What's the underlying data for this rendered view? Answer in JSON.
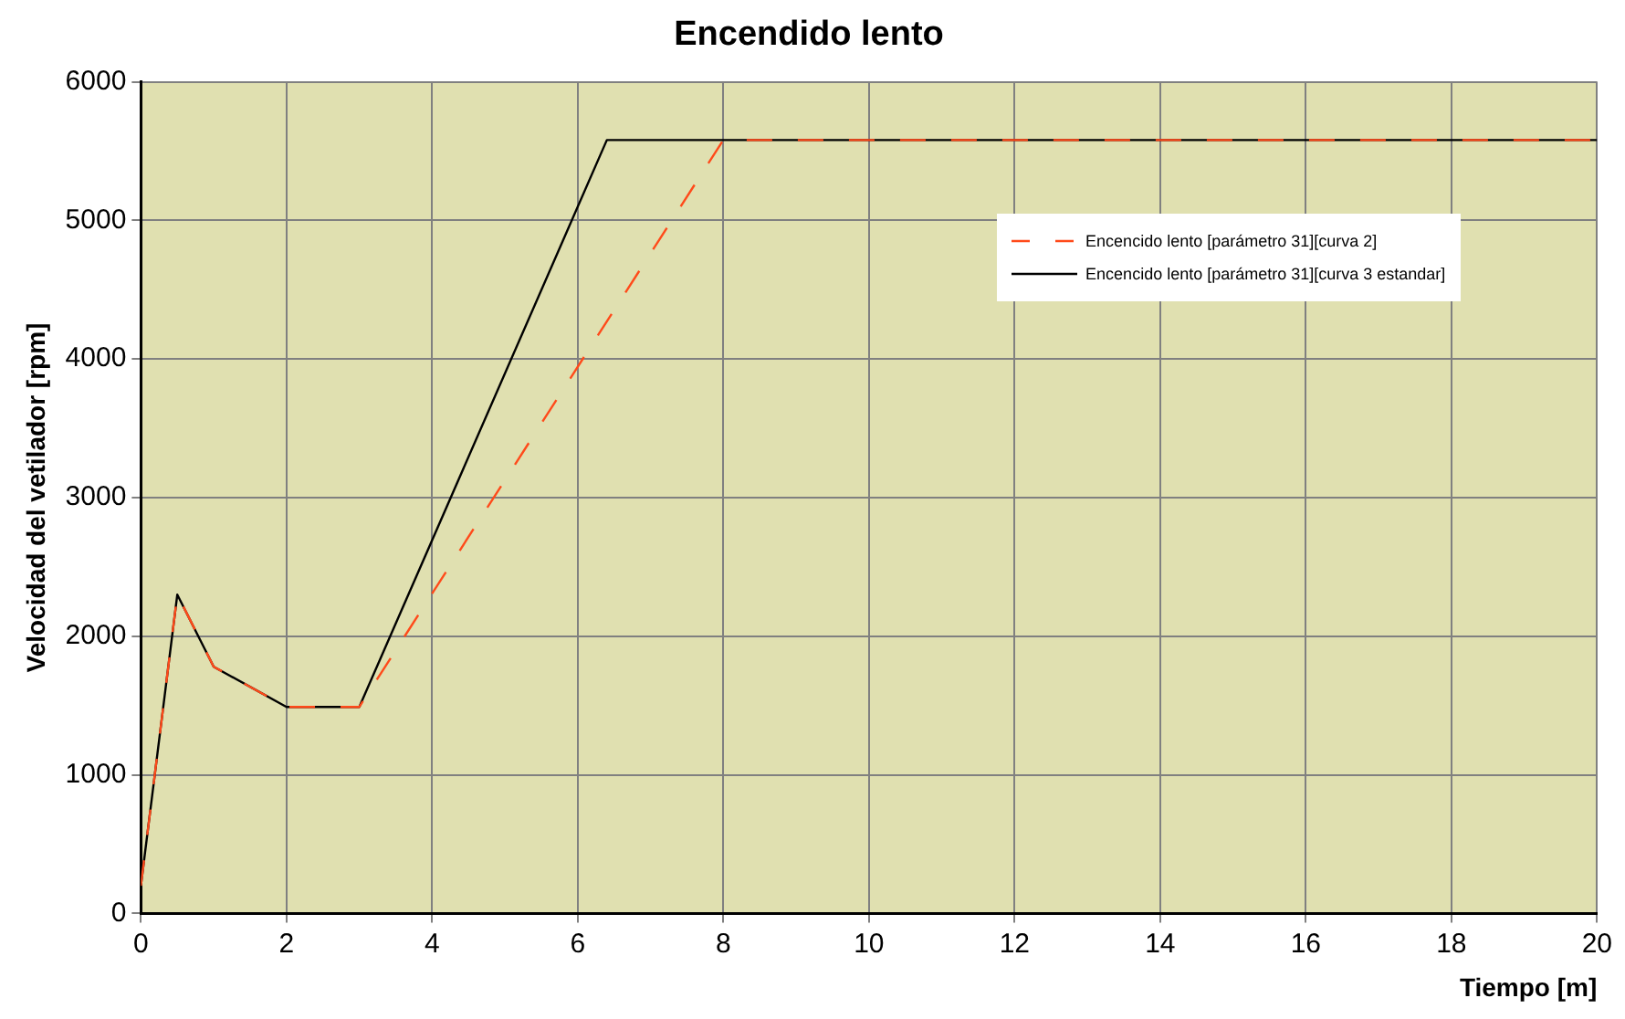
{
  "chart_data": {
    "type": "line",
    "title": "Encendido lento",
    "xlabel": "Tiempo [m]",
    "ylabel": "Velocidad del vetilador [rpm]",
    "xlim": [
      0,
      20
    ],
    "xticks": [
      0,
      2,
      4,
      6,
      8,
      10,
      12,
      14,
      16,
      18,
      20
    ],
    "ylim": [
      0,
      6000
    ],
    "yticks": [
      0,
      1000,
      2000,
      3000,
      4000,
      5000,
      6000
    ],
    "grid": true,
    "legend": "top right",
    "marker": "none",
    "series": [
      {
        "name": "Encencido lento [parámetro 31][curva 2]",
        "color": "#ff4a1a",
        "line_style": "dashed",
        "x": [
          0,
          0.5,
          1,
          2,
          3,
          8,
          20
        ],
        "values": [
          200,
          2300,
          1780,
          1490,
          1490,
          5580,
          5580
        ]
      },
      {
        "name": "Encencido lento [parámetro 31][curva 3 estandar]",
        "color": "#000000",
        "line_style": "solid",
        "x": [
          0,
          0.5,
          1,
          2,
          3,
          6.4,
          20
        ],
        "values": [
          200,
          2300,
          1780,
          1490,
          1490,
          5580,
          5580
        ]
      }
    ]
  }
}
